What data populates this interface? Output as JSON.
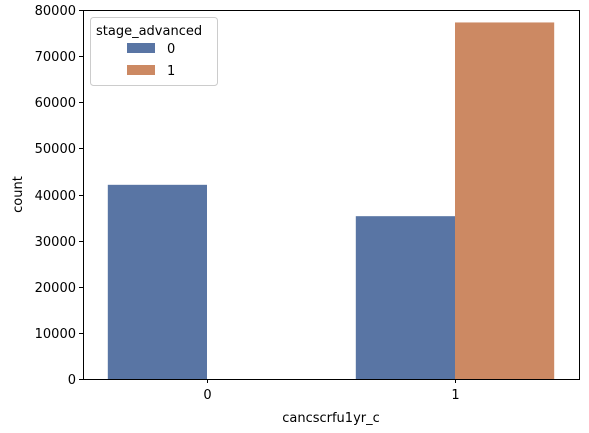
{
  "chart_data": {
    "type": "bar",
    "categories": [
      "0",
      "1"
    ],
    "series": [
      {
        "name": "0",
        "color": "#5975a4",
        "values": [
          42100,
          35300
        ]
      },
      {
        "name": "1",
        "color": "#cc8963",
        "values": [
          0,
          77300
        ]
      }
    ],
    "xlabel": "cancscrfu1yr_c",
    "ylabel": "count",
    "ylim": [
      0,
      80000
    ],
    "yticks": [
      "0",
      "10000",
      "20000",
      "30000",
      "40000",
      "50000",
      "60000",
      "70000",
      "80000"
    ],
    "grid": false,
    "legend": {
      "title": "stage_advanced",
      "placement": "top-left"
    }
  }
}
